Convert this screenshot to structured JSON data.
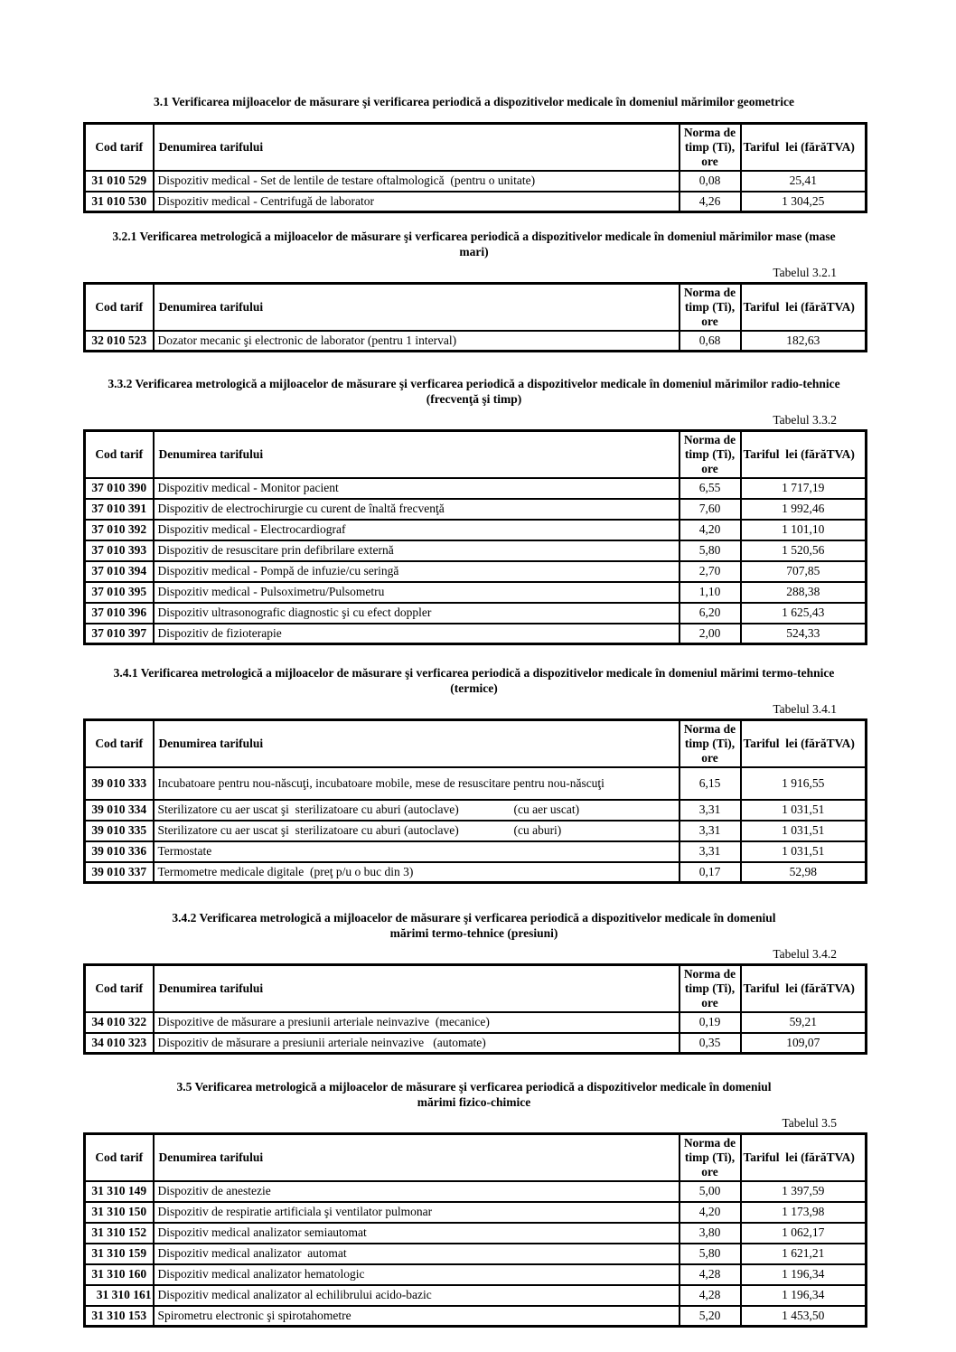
{
  "headers": {
    "cod": "Cod tarif",
    "denumirea": "Denumirea tarifului",
    "norma": "Norma de\ntimp (Ti),\nore",
    "tarif": "Tariful  lei (fărăTVA)"
  },
  "sections": [
    {
      "heading": "3.1 Verificarea mijloacelor de măsurare şi verificarea periodică a dispozitivelor medicale în domeniul mărimilor geometrice",
      "label": "",
      "rows": [
        {
          "cod": "31 010 529",
          "den": "Dispozitiv medical - Set de lentile de testare oftalmologică  (pentru o unitate)",
          "norma": "0,08",
          "tarif": "25,41"
        },
        {
          "cod": "31 010 530",
          "den": "Dispozitiv medical - Centrifugă de laborator",
          "norma": "4,26",
          "tarif": "1 304,25"
        }
      ]
    },
    {
      "heading": "3.2.1 Verificarea metrologică a mijloacelor de măsurare şi verficarea periodică a dispozitivelor medicale în domeniul mărimilor mase (mase\nmari)",
      "label": "Tabelul 3.2.1",
      "rows": [
        {
          "cod": "32 010 523",
          "den": "Dozator mecanic şi electronic de laborator (pentru 1 interval)",
          "norma": "0,68",
          "tarif": "182,63"
        }
      ]
    },
    {
      "heading": "3.3.2 Verificarea metrologică a mijloacelor de măsurare şi verficarea periodică a dispozitivelor medicale în domeniul mărimilor radio-tehnice\n(frecvenţă şi timp)",
      "label": "Tabelul 3.3.2",
      "rows": [
        {
          "cod": "37 010 390",
          "den": "Dispozitiv medical - Monitor pacient",
          "norma": "6,55",
          "tarif": "1 717,19"
        },
        {
          "cod": "37 010 391",
          "den": "Dispozitiv de electrochirurgie cu curent de înaltă frecvenţă",
          "norma": "7,60",
          "tarif": "1 992,46"
        },
        {
          "cod": "37 010 392",
          "den": "Dispozitiv medical - Electrocardiograf",
          "norma": "4,20",
          "tarif": "1 101,10"
        },
        {
          "cod": "37 010 393",
          "den": "Dispozitiv de resuscitare prin defibrilare externă",
          "norma": "5,80",
          "tarif": "1 520,56"
        },
        {
          "cod": "37 010 394",
          "den": "Dispozitiv medical - Pompă de infuzie/cu seringă",
          "norma": "2,70",
          "tarif": "707,85"
        },
        {
          "cod": "37 010 395",
          "den": "Dispozitiv medical - Pulsoximetru/Pulsometru",
          "norma": "1,10",
          "tarif": "288,38"
        },
        {
          "cod": "37 010 396",
          "den": "Dispozitiv ultrasonografic diagnostic şi cu efect doppler",
          "norma": "6,20",
          "tarif": "1 625,43"
        },
        {
          "cod": "37 010 397",
          "den": "Dispozitiv de fizioterapie",
          "norma": "2,00",
          "tarif": "524,33"
        }
      ]
    },
    {
      "heading": "3.4.1 Verificarea metrologică a mijloacelor de măsurare şi verficarea periodică a dispozitivelor medicale în domeniul mărimi termo-tehnice\n(termice)",
      "label": "Tabelul 3.4.1",
      "rows": [
        {
          "cod": "39 010 333",
          "den": "Incubatoare pentru nou-născuţi, incubatoare mobile, mese de resuscitare pentru nou-născuţi",
          "norma": "6,15",
          "tarif": "1 916,55",
          "tall": true
        },
        {
          "cod": "39 010 334",
          "den": "Sterilizatore cu aer uscat şi  sterilizatoare cu aburi (autoclave)                  (cu aer uscat)",
          "norma": "3,31",
          "tarif": "1 031,51"
        },
        {
          "cod": "39 010 335",
          "den": "Sterilizatore cu aer uscat şi  sterilizatoare cu aburi (autoclave)                  (cu aburi)",
          "norma": "3,31",
          "tarif": "1 031,51"
        },
        {
          "cod": "39 010 336",
          "den": "Termostate",
          "norma": "3,31",
          "tarif": "1 031,51"
        },
        {
          "cod": "39 010 337",
          "den": "Termometre medicale digitale  (preţ p/u o buc din 3)",
          "norma": "0,17",
          "tarif": "52,98"
        }
      ]
    },
    {
      "heading": "3.4.2 Verificarea metrologică a mijloacelor de măsurare şi verficarea periodică a dispozitivelor medicale în domeniul\nmărimi termo-tehnice (presiuni)",
      "label": "Tabelul 3.4.2",
      "rows": [
        {
          "cod": "34 010 322",
          "den": "Dispozitive de măsurare a presiunii arteriale neinvazive  (mecanice)",
          "norma": "0,19",
          "tarif": "59,21"
        },
        {
          "cod": "34 010 323",
          "den": "Dispozitiv de măsurare a presiunii arteriale neinvazive   (automate)",
          "norma": "0,35",
          "tarif": "109,07"
        }
      ]
    },
    {
      "heading": "3.5 Verificarea metrologică a mijloacelor de măsurare şi verficarea periodică a dispozitivelor medicale în domeniul\nmărimi fizico-chimice",
      "label": "Tabelul 3.5",
      "rows": [
        {
          "cod": "31 310 149",
          "den": "Dispozitiv de anestezie",
          "norma": "5,00",
          "tarif": "1 397,59"
        },
        {
          "cod": "31 310 150",
          "den": "Dispozitiv de respiratie artificiala şi ventilator pulmonar",
          "norma": "4,20",
          "tarif": "1 173,98"
        },
        {
          "cod": "31 310 152",
          "den": "Dispozitiv medical analizator semiautomat",
          "norma": "3,80",
          "tarif": "1 062,17"
        },
        {
          "cod": "31 310 159",
          "den": "Dispozitiv medical analizator  automat",
          "norma": "5,80",
          "tarif": "1 621,21"
        },
        {
          "cod": "31 310 160",
          "den": "Dispozitiv medical analizator hematologic",
          "norma": "4,28",
          "tarif": "1 196,34"
        },
        {
          "cod": "31 310 161",
          "den": "Dispozitiv medical analizator al echilibrului acido-bazic",
          "norma": "4,28",
          "tarif": "1 196,34",
          "codAlign": "right"
        },
        {
          "cod": "31 310 153",
          "den": "Spirometru electronic şi spirotahometre",
          "norma": "5,20",
          "tarif": "1 453,50"
        }
      ]
    }
  ]
}
